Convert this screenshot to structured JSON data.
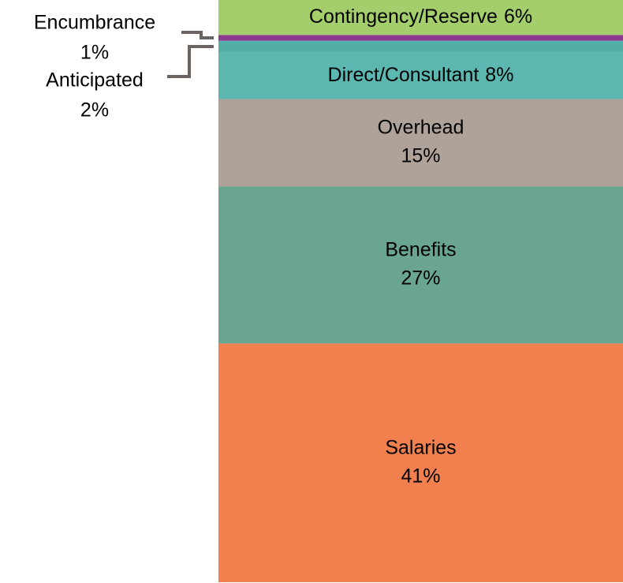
{
  "chart_data": {
    "type": "stacked_bar",
    "series": [
      {
        "name": "Salaries",
        "color": "#f2804f",
        "values": [
          41
        ],
        "value_labels": [
          "41%"
        ]
      },
      {
        "name": "Benefits",
        "color": "#6aa591",
        "values": [
          27
        ],
        "value_labels": [
          "27%"
        ]
      },
      {
        "name": "Overhead",
        "color": "#afa299",
        "values": [
          15
        ],
        "value_labels": [
          "15%"
        ]
      },
      {
        "name": "Direct/Consultant",
        "color": "#5bb7b0",
        "values": [
          8
        ],
        "value_labels": [
          "8%"
        ]
      },
      {
        "name": "Anticipated",
        "color": "#52aea7",
        "values": [
          2
        ],
        "value_labels": [
          "2%"
        ]
      },
      {
        "name": "Encumbrance",
        "color": "#8b3a8f",
        "values": [
          1
        ],
        "value_labels": [
          "1%"
        ]
      },
      {
        "name": "Contingency/Reserve",
        "color": "#a3ce6b",
        "values": [
          6
        ],
        "value_labels": [
          "6%"
        ]
      }
    ]
  }
}
